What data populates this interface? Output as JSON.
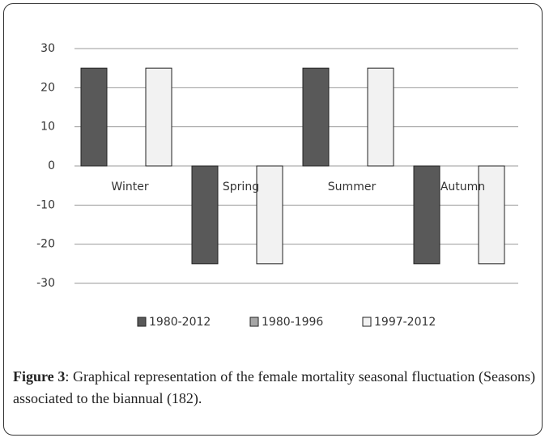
{
  "chart_data": {
    "type": "bar",
    "categories": [
      "Winter",
      "Spring",
      "Summer",
      "Autumn"
    ],
    "series": [
      {
        "name": "1980-2012",
        "color": "#595959",
        "values": [
          25,
          -25,
          25,
          -25
        ]
      },
      {
        "name": "1980-1996",
        "color": "#a6a6a6",
        "values": [
          0,
          0,
          0,
          0
        ]
      },
      {
        "name": "1997-2012",
        "color": "#f2f2f2",
        "values": [
          25,
          -25,
          25,
          -25
        ]
      }
    ],
    "ylim": [
      -30,
      30
    ],
    "yticks": [
      30,
      20,
      10,
      0,
      -10,
      -20,
      -30
    ],
    "grid": true,
    "legend": "bottom"
  },
  "caption": {
    "label": "Figure 3",
    "text": ": Graphical representation of the female mortality seasonal fluctuation (Seasons) associated to the biannual (182)."
  }
}
